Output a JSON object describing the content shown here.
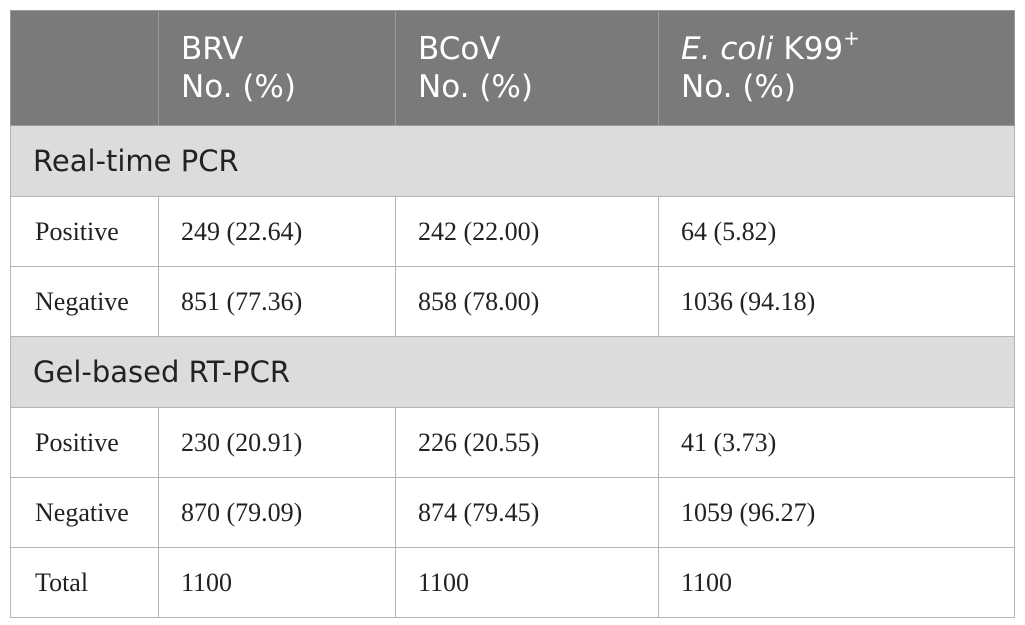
{
  "header": {
    "col1_line1": "BRV",
    "col1_line2": "No. (%)",
    "col2_line1": "BCoV",
    "col2_line2": "No. (%)",
    "col3_italic": "E. coli",
    "col3_rest": " K99",
    "col3_sup": "+",
    "col3_line2": "No. (%)"
  },
  "sections": [
    {
      "title": "Real-time PCR",
      "rows": [
        {
          "label": "Positive",
          "brv": "249 (22.64)",
          "bcov": "242 (22.00)",
          "ecoli": "64 (5.82)"
        },
        {
          "label": "Negative",
          "brv": "851 (77.36)",
          "bcov": "858 (78.00)",
          "ecoli": "1036 (94.18)"
        }
      ]
    },
    {
      "title": "Gel-based RT-PCR",
      "rows": [
        {
          "label": "Positive",
          "brv": "230 (20.91)",
          "bcov": "226 (20.55)",
          "ecoli": "41 (3.73)"
        },
        {
          "label": "Negative",
          "brv": "870 (79.09)",
          "bcov": "874 (79.45)",
          "ecoli": "1059 (96.27)"
        },
        {
          "label": "Total",
          "brv": "1100",
          "bcov": "1100",
          "ecoli": "1100"
        }
      ]
    }
  ]
}
